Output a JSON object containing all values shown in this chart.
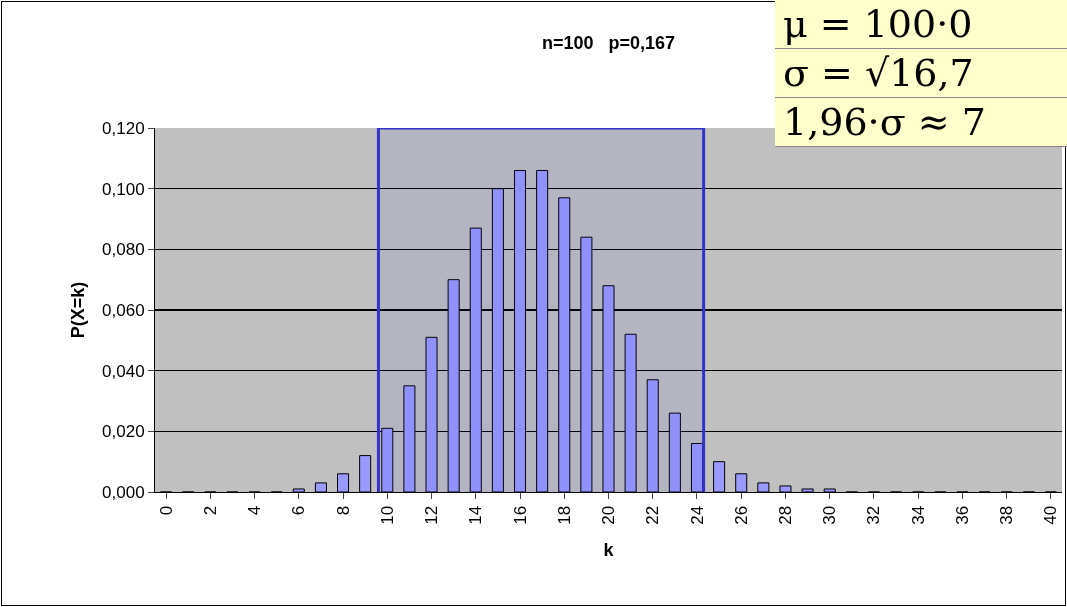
{
  "chart_data": {
    "type": "bar",
    "title": "n=100   p=0,167",
    "xlabel": "k",
    "ylabel": "P(X=k)",
    "x": [
      0,
      1,
      2,
      3,
      4,
      5,
      6,
      7,
      8,
      9,
      10,
      11,
      12,
      13,
      14,
      15,
      16,
      17,
      18,
      19,
      20,
      21,
      22,
      23,
      24,
      25,
      26,
      27,
      28,
      29,
      30,
      31,
      32,
      33,
      34,
      35,
      36,
      37,
      38,
      39,
      40
    ],
    "values": [
      0,
      0,
      0,
      0,
      0,
      0,
      0.001,
      0.003,
      0.006,
      0.012,
      0.021,
      0.035,
      0.051,
      0.07,
      0.087,
      0.1,
      0.106,
      0.106,
      0.097,
      0.084,
      0.068,
      0.052,
      0.037,
      0.026,
      0.016,
      0.01,
      0.006,
      0.003,
      0.002,
      0.001,
      0.001,
      0,
      0,
      0,
      0,
      0,
      0,
      0,
      0,
      0,
      0
    ],
    "color": "#9999ff",
    "xlim": [
      -0.5,
      40.5
    ],
    "xticks": [
      0,
      2,
      4,
      6,
      8,
      10,
      12,
      14,
      16,
      18,
      20,
      22,
      24,
      26,
      28,
      30,
      32,
      34,
      36,
      38,
      40
    ],
    "ylim": [
      0,
      0.12
    ],
    "yticks": [
      {
        "value": 0,
        "label": "0,000"
      },
      {
        "value": 0.02,
        "label": "0,020"
      },
      {
        "value": 0.04,
        "label": "0,040"
      },
      {
        "value": 0.06,
        "label": "0,060"
      },
      {
        "value": 0.08,
        "label": "0,080"
      },
      {
        "value": 0.1,
        "label": "0,100"
      },
      {
        "value": 0.12,
        "label": "0,120"
      }
    ],
    "grid": "y",
    "bands": [
      {
        "axis": "x",
        "from": 9.6,
        "to": 24.3,
        "color": "#3333cc"
      }
    ],
    "annotations": [
      "μ = 100·0",
      "σ = √16,7",
      "1,96·σ ≈ 7"
    ]
  }
}
